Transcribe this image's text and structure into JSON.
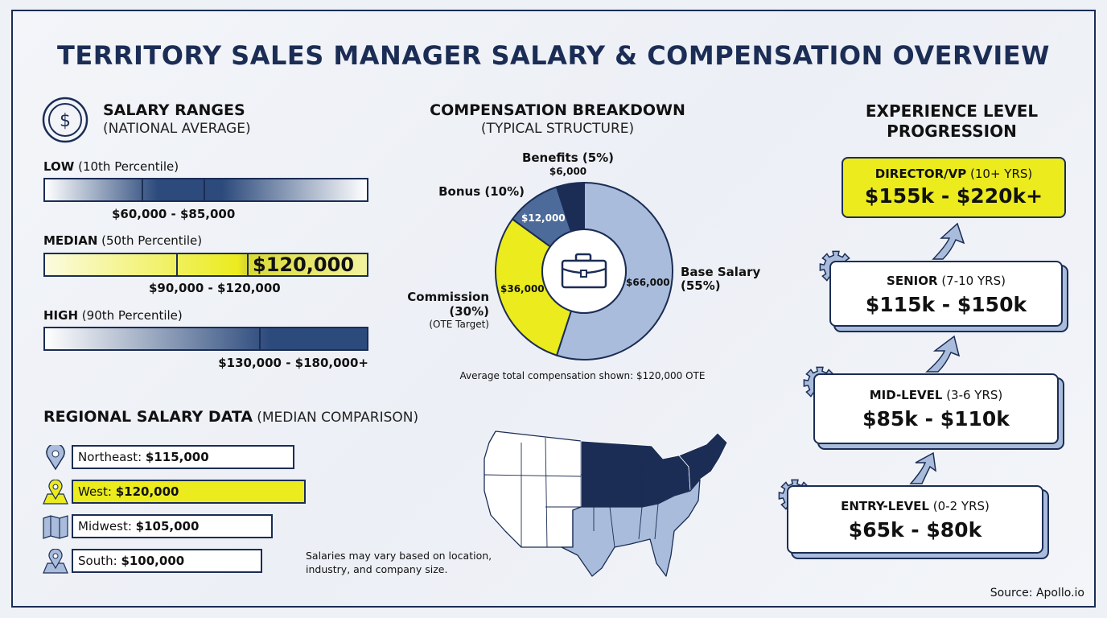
{
  "title": "TERRITORY SALES MANAGER SALARY & COMPENSATION OVERVIEW",
  "salary_ranges": {
    "heading": "SALARY RANGES",
    "subheading": "(NATIONAL AVERAGE)",
    "low": {
      "label": "LOW",
      "sub": "(10th Percentile)",
      "range": "$60,000 - $85,000"
    },
    "median": {
      "label": "MEDIAN",
      "sub": "(50th Percentile)",
      "range": "$90,000 - $120,000",
      "highlight": "$120,000"
    },
    "high": {
      "label": "HIGH",
      "sub": "(90th Percentile)",
      "range": "$130,000 - $180,000+"
    }
  },
  "compensation": {
    "heading": "COMPENSATION BREAKDOWN",
    "subheading": "(TYPICAL STRUCTURE)",
    "benefits_label": "Benefits (5%)",
    "benefits_value": "$6,000",
    "bonus_label": "Bonus (10%)",
    "bonus_value": "$12,000",
    "commission_label": "Commission",
    "commission_pct": "(30%)",
    "commission_note": "(OTE Target)",
    "commission_value": "$36,000",
    "base_label": "Base Salary",
    "base_pct": "(55%)",
    "base_value": "$66,000",
    "note": "Average total compensation shown: $120,000 OTE"
  },
  "chart_data": {
    "type": "pie",
    "variant": "donut",
    "start": "top",
    "direction": "clockwise",
    "categories": [
      "Base Salary",
      "Commission",
      "Bonus",
      "Benefits"
    ],
    "values": [
      55,
      30,
      10,
      5
    ],
    "amounts": [
      66000,
      36000,
      12000,
      6000
    ],
    "colors": [
      "#a9bcdb",
      "#ebeb1e",
      "#4c6b9a",
      "#1b2d55"
    ],
    "title": "COMPENSATION BREAKDOWN"
  },
  "regional": {
    "heading": "REGIONAL SALARY DATA",
    "subheading": "(MEDIAN COMPARISON)",
    "items": [
      {
        "name": "Northeast:",
        "value": "$115,000"
      },
      {
        "name": "West:",
        "value": "$120,000"
      },
      {
        "name": "Midwest:",
        "value": "$105,000"
      },
      {
        "name": "South:",
        "value": "$100,000"
      }
    ],
    "note_line1": "Salaries may vary based on location,",
    "note_line2": "industry, and company size."
  },
  "experience": {
    "heading_line1": "EXPERIENCE LEVEL",
    "heading_line2": "PROGRESSION",
    "levels": [
      {
        "name": "DIRECTOR/VP",
        "years": "(10+ YRS)",
        "range": "$155k - $220k+"
      },
      {
        "name": "SENIOR",
        "years": "(7-10 YRS)",
        "range": "$115k - $150k"
      },
      {
        "name": "MID-LEVEL",
        "years": "(3-6 YRS)",
        "range": "$85k - $110k"
      },
      {
        "name": "ENTRY-LEVEL",
        "years": "(0-2 YRS)",
        "range": "$65k - $80k"
      }
    ]
  },
  "colors": {
    "navy": "#1b2d55",
    "yellow": "#ebeb1e",
    "light_blue": "#a9bcdb"
  },
  "source": "Source: Apollo.io"
}
